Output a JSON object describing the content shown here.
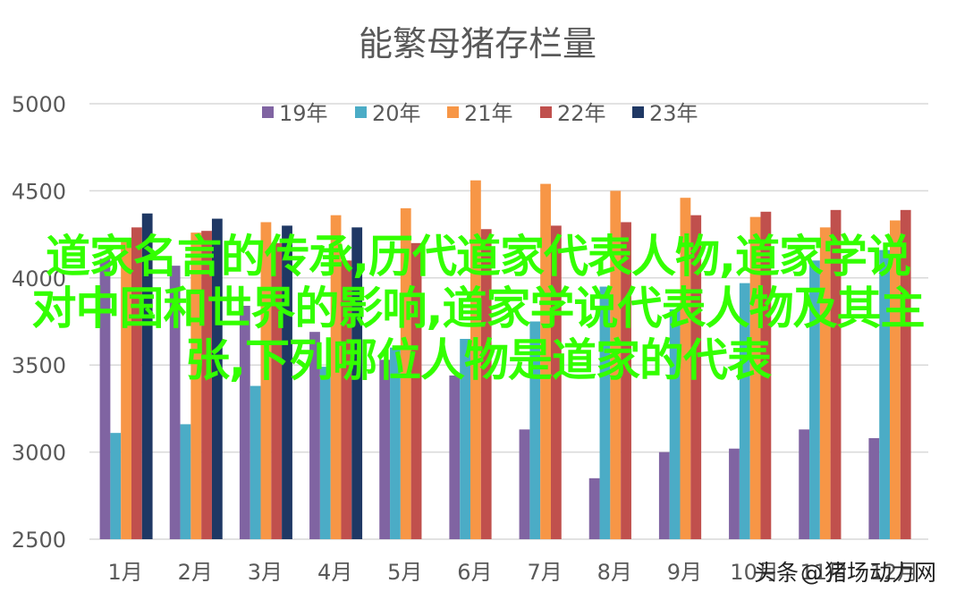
{
  "chart_data": {
    "type": "bar",
    "title": "能繁母猪存栏量",
    "xlabel": "",
    "ylabel": "",
    "ylim": [
      2500,
      5000
    ],
    "yticks": [
      "5000",
      "4500",
      "4000",
      "3500",
      "3000",
      "2500"
    ],
    "grid": true,
    "legend_position": "top",
    "categories": [
      "1月",
      "2月",
      "3月",
      "4月",
      "5月",
      "6月",
      "7月",
      "8月",
      "9月",
      "10月",
      "11月",
      "12月"
    ],
    "series": [
      {
        "name": "19年",
        "color": "#8064a2",
        "values": [
          4110,
          4070,
          3840,
          3690,
          3530,
          3440,
          3130,
          2850,
          3000,
          3020,
          3130,
          3080
        ]
      },
      {
        "name": "20年",
        "color": "#4bacc6",
        "values": [
          3110,
          3160,
          3380,
          3490,
          3600,
          3650,
          3750,
          3950,
          3820,
          3970,
          4100,
          4160
        ]
      },
      {
        "name": "21年",
        "color": "#f79646",
        "values": [
          4220,
          4260,
          4320,
          4360,
          4400,
          4560,
          4540,
          4500,
          4460,
          4350,
          4290,
          4330
        ]
      },
      {
        "name": "22年",
        "color": "#c0504d",
        "values": [
          4290,
          4270,
          4200,
          4100,
          4200,
          4280,
          4300,
          4320,
          4360,
          4380,
          4390,
          4390
        ]
      },
      {
        "name": "23年",
        "color": "#1f3864",
        "values": [
          4370,
          4340,
          4300,
          4290,
          null,
          null,
          null,
          null,
          null,
          null,
          null,
          null
        ]
      }
    ]
  },
  "overlay": {
    "line1": "道家名言的传承,历代道家代表人物,道家学说",
    "line2": "对中国和世界的影响,道家学说代表人物及其主",
    "line3": "张,下列哪位人物是道家的代表"
  },
  "watermark": {
    "prefix": "头条",
    "at": "@",
    "suffix": "猪场动力网"
  }
}
